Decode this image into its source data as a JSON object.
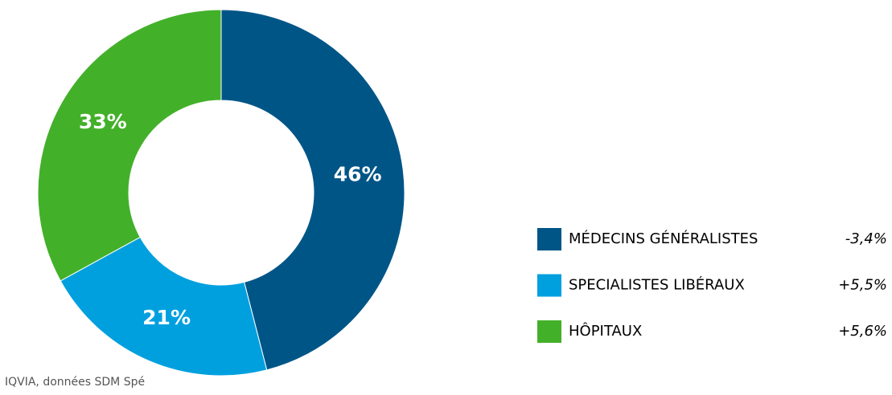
{
  "chart_data": {
    "type": "donut",
    "categories": [
      "MÉDECINS GÉNÉRALISTES",
      "SPECIALISTES LIBÉRAUX",
      "HÔPITAUX"
    ],
    "values": [
      46,
      21,
      33
    ],
    "value_labels": [
      "46%",
      "21%",
      "33%"
    ],
    "colors": [
      "#005587",
      "#00a0df",
      "#43b02a"
    ],
    "changes": [
      "-3,4%",
      "+5,5%",
      "+5,6%"
    ],
    "legend": "right",
    "source": "IQVIA, données SDM Spé"
  }
}
